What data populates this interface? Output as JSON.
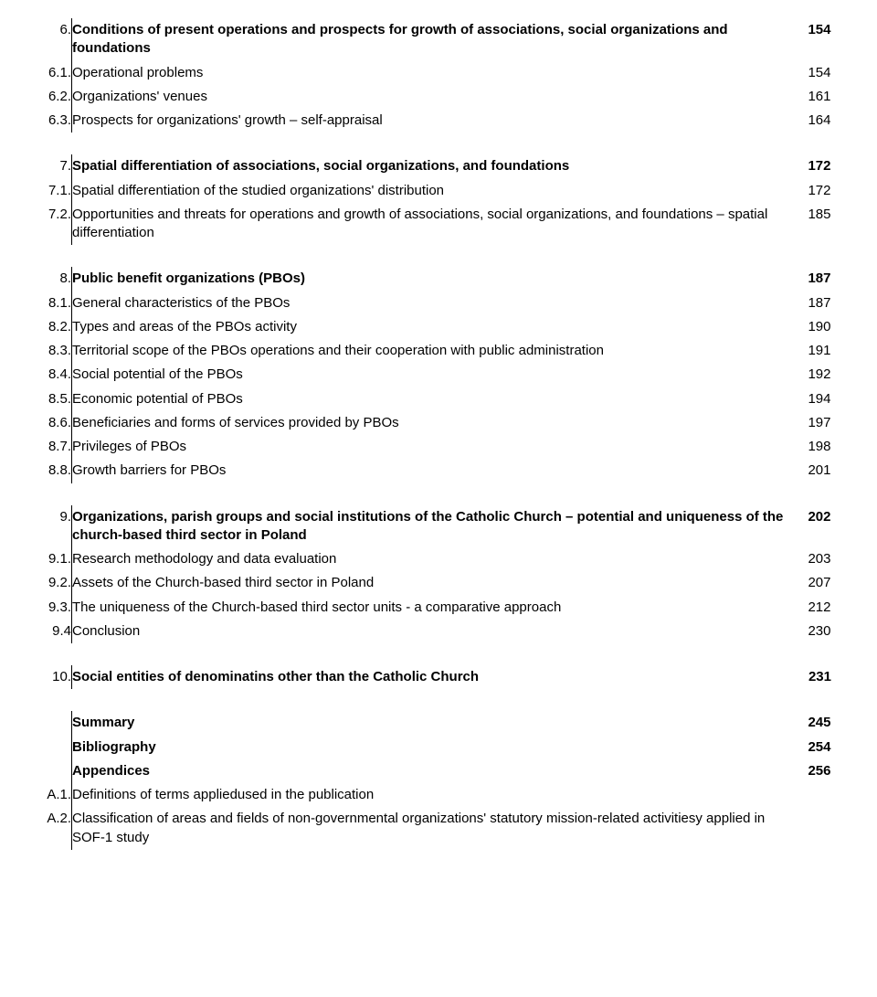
{
  "sections": [
    {
      "rows": [
        {
          "num": "6.",
          "title": "Conditions of present operations and prospects for growth of associations, social organizations and foundations",
          "page": "154",
          "bold": true
        },
        {
          "num": "6.1.",
          "title": "Operational problems",
          "page": "154",
          "bold": false
        },
        {
          "num": "6.2.",
          "title": "Organizations' venues",
          "page": "161",
          "bold": false
        },
        {
          "num": "6.3.",
          "title": "Prospects for organizations' growth – self-appraisal",
          "page": "164",
          "bold": false
        }
      ]
    },
    {
      "rows": [
        {
          "num": "7.",
          "title": "Spatial differentiation of associations, social organizations, and foundations",
          "page": "172",
          "bold": true
        },
        {
          "num": "7.1.",
          "title": "Spatial differentiation of the studied organizations' distribution",
          "page": "172",
          "bold": false
        },
        {
          "num": "7.2.",
          "title": "Opportunities and threats for operations and growth of associations, social organizations, and foundations – spatial differentiation",
          "page": "185",
          "bold": false
        }
      ]
    },
    {
      "rows": [
        {
          "num": "8.",
          "title": "Public benefit organizations (PBOs)",
          "page": "187",
          "bold": true
        },
        {
          "num": "8.1.",
          "title": "General characteristics of the PBOs",
          "page": "187",
          "bold": false
        },
        {
          "num": "8.2.",
          "title": "Types and areas of the PBOs activity",
          "page": "190",
          "bold": false
        },
        {
          "num": "8.3.",
          "title": "Territorial scope of the PBOs operations and their cooperation with public administration",
          "page": "191",
          "bold": false
        },
        {
          "num": "8.4.",
          "title": "Social potential of the PBOs",
          "page": "192",
          "bold": false
        },
        {
          "num": "8.5.",
          "title": "Economic potential of PBOs",
          "page": "194",
          "bold": false
        },
        {
          "num": "8.6.",
          "title": "Beneficiaries and forms of services provided by PBOs",
          "page": "197",
          "bold": false
        },
        {
          "num": "8.7.",
          "title": "Privileges of PBOs",
          "page": "198",
          "bold": false
        },
        {
          "num": "8.8.",
          "title": "Growth barriers for PBOs",
          "page": "201",
          "bold": false
        }
      ]
    },
    {
      "rows": [
        {
          "num": "9.",
          "title": "Organizations, parish groups and social institutions of the Catholic Church – potential and uniqueness of the church-based third sector in Poland",
          "page": "202",
          "bold": true
        },
        {
          "num": "9.1.",
          "title": "Research methodology and data evaluation",
          "page": "203",
          "bold": false
        },
        {
          "num": "9.2.",
          "title": "Assets of the Church-based third sector in Poland",
          "page": "207",
          "bold": false
        },
        {
          "num": "9.3.",
          "title": "The uniqueness of the Church-based third sector units - a comparative approach",
          "page": "212",
          "bold": false
        },
        {
          "num": "9.4",
          "title": "Conclusion",
          "page": "230",
          "bold": false
        }
      ]
    },
    {
      "rows": [
        {
          "num": "10.",
          "title": "Social entities of denominatins other than the Catholic Church",
          "page": "231",
          "bold": true
        }
      ]
    },
    {
      "rows": [
        {
          "num": "",
          "title": "Summary",
          "page": "245",
          "bold": true
        },
        {
          "num": "",
          "title": "Bibliography",
          "page": "254",
          "bold": true
        },
        {
          "num": "",
          "title": "Appendices",
          "page": "256",
          "bold": true
        },
        {
          "num": "A.1.",
          "title": "Definitions of terms appliedused in the publication",
          "page": "",
          "bold": false
        },
        {
          "num": "A.2.",
          "title": "Classification of areas and fields of non-governmental organizations' statutory mission-related activitiesy applied in SOF-1 study",
          "page": "",
          "bold": false
        }
      ]
    }
  ]
}
